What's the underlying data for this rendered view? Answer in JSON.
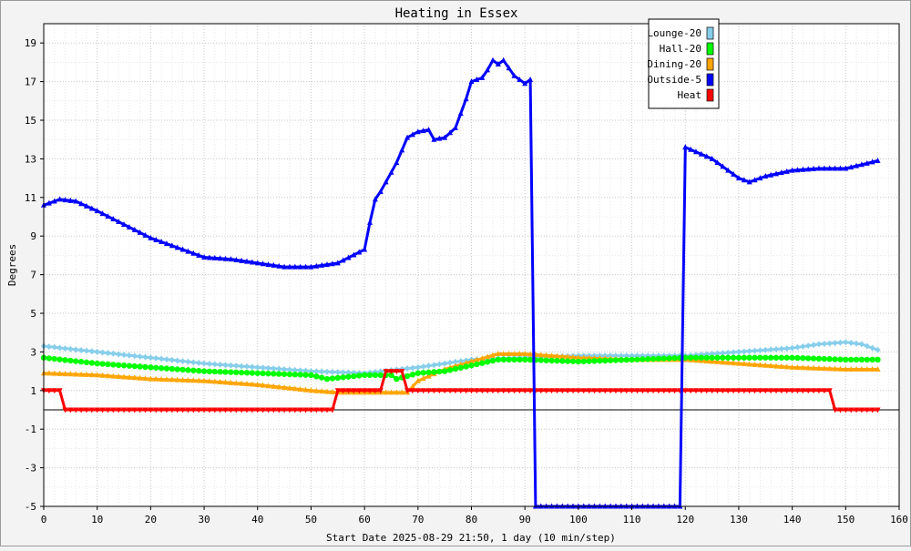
{
  "chart_data": {
    "type": "line",
    "title": "Heating in Essex",
    "xlabel": "Start Date 2025-08-29 21:50, 1 day (10 min/step)",
    "ylabel": "Degrees",
    "xlim": [
      0,
      160
    ],
    "ylim": [
      -5,
      20
    ],
    "x_ticks": [
      0,
      10,
      20,
      30,
      40,
      50,
      60,
      70,
      80,
      90,
      100,
      110,
      120,
      130,
      140,
      150,
      160
    ],
    "y_ticks": [
      -5,
      -3,
      -1,
      1,
      3,
      5,
      7,
      9,
      11,
      13,
      15,
      17,
      19
    ],
    "grid": true,
    "legend_position": "top-right",
    "series": [
      {
        "name": "Lounge-20",
        "color": "#87ceeb",
        "marker": "diamond",
        "points": [
          [
            0,
            3.3
          ],
          [
            10,
            3.0
          ],
          [
            20,
            2.7
          ],
          [
            30,
            2.4
          ],
          [
            40,
            2.2
          ],
          [
            50,
            2.0
          ],
          [
            60,
            1.9
          ],
          [
            70,
            2.2
          ],
          [
            80,
            2.6
          ],
          [
            90,
            2.7
          ],
          [
            100,
            2.8
          ],
          [
            110,
            2.8
          ],
          [
            120,
            2.8
          ],
          [
            130,
            3.0
          ],
          [
            140,
            3.2
          ],
          [
            145,
            3.4
          ],
          [
            150,
            3.5
          ],
          [
            153,
            3.4
          ],
          [
            156,
            3.1
          ]
        ]
      },
      {
        "name": "Hall-20",
        "color": "#00ff00",
        "marker": "circle",
        "points": [
          [
            0,
            2.7
          ],
          [
            10,
            2.4
          ],
          [
            20,
            2.2
          ],
          [
            30,
            2.0
          ],
          [
            40,
            1.9
          ],
          [
            50,
            1.8
          ],
          [
            53,
            1.6
          ],
          [
            60,
            1.8
          ],
          [
            65,
            1.8
          ],
          [
            66,
            1.6
          ],
          [
            70,
            1.9
          ],
          [
            75,
            2.0
          ],
          [
            80,
            2.3
          ],
          [
            85,
            2.6
          ],
          [
            90,
            2.6
          ],
          [
            100,
            2.5
          ],
          [
            110,
            2.6
          ],
          [
            120,
            2.7
          ],
          [
            130,
            2.7
          ],
          [
            140,
            2.7
          ],
          [
            150,
            2.6
          ],
          [
            156,
            2.6
          ]
        ]
      },
      {
        "name": "Dining-20",
        "color": "#ffa500",
        "marker": "triangle-up",
        "points": [
          [
            0,
            1.9
          ],
          [
            10,
            1.8
          ],
          [
            20,
            1.6
          ],
          [
            30,
            1.5
          ],
          [
            40,
            1.3
          ],
          [
            50,
            1.0
          ],
          [
            55,
            0.9
          ],
          [
            60,
            0.9
          ],
          [
            65,
            0.9
          ],
          [
            68,
            0.9
          ],
          [
            70,
            1.5
          ],
          [
            75,
            2.1
          ],
          [
            80,
            2.5
          ],
          [
            85,
            2.9
          ],
          [
            90,
            2.9
          ],
          [
            95,
            2.8
          ],
          [
            100,
            2.7
          ],
          [
            110,
            2.6
          ],
          [
            120,
            2.6
          ],
          [
            130,
            2.4
          ],
          [
            140,
            2.2
          ],
          [
            150,
            2.1
          ],
          [
            156,
            2.1
          ]
        ]
      },
      {
        "name": "Outside-5",
        "color": "#0000ff",
        "marker": "triangle-up",
        "points": [
          [
            0,
            10.6
          ],
          [
            3,
            10.9
          ],
          [
            6,
            10.8
          ],
          [
            10,
            10.3
          ],
          [
            15,
            9.6
          ],
          [
            20,
            8.9
          ],
          [
            25,
            8.4
          ],
          [
            30,
            7.9
          ],
          [
            35,
            7.8
          ],
          [
            40,
            7.6
          ],
          [
            45,
            7.4
          ],
          [
            50,
            7.4
          ],
          [
            55,
            7.6
          ],
          [
            60,
            8.3
          ],
          [
            61,
            9.7
          ],
          [
            62,
            10.9
          ],
          [
            63,
            11.3
          ],
          [
            64,
            11.8
          ],
          [
            65,
            12.3
          ],
          [
            66,
            12.8
          ],
          [
            68,
            14.1
          ],
          [
            70,
            14.4
          ],
          [
            72,
            14.5
          ],
          [
            73,
            14.0
          ],
          [
            75,
            14.1
          ],
          [
            77,
            14.6
          ],
          [
            79,
            16.1
          ],
          [
            80,
            17.0
          ],
          [
            82,
            17.2
          ],
          [
            83,
            17.6
          ],
          [
            84,
            18.1
          ],
          [
            85,
            17.9
          ],
          [
            86,
            18.1
          ],
          [
            88,
            17.3
          ],
          [
            90,
            16.9
          ],
          [
            91,
            17.1
          ],
          [
            92,
            -5.0
          ],
          [
            100,
            -5.0
          ],
          [
            110,
            -5.0
          ],
          [
            118,
            -5.0
          ],
          [
            119,
            -5.0
          ],
          [
            120,
            13.6
          ],
          [
            125,
            13.0
          ],
          [
            130,
            12.0
          ],
          [
            132,
            11.8
          ],
          [
            135,
            12.1
          ],
          [
            140,
            12.4
          ],
          [
            145,
            12.5
          ],
          [
            150,
            12.5
          ],
          [
            153,
            12.7
          ],
          [
            156,
            12.9
          ]
        ]
      },
      {
        "name": "Heat",
        "color": "#ff0000",
        "marker": "triangle-down",
        "points": [
          [
            0,
            1.0
          ],
          [
            3,
            1.0
          ],
          [
            4,
            0.0
          ],
          [
            20,
            0.0
          ],
          [
            40,
            0.0
          ],
          [
            54,
            0.0
          ],
          [
            55,
            1.0
          ],
          [
            63,
            1.0
          ],
          [
            64,
            2.0
          ],
          [
            67,
            2.0
          ],
          [
            68,
            1.0
          ],
          [
            80,
            1.0
          ],
          [
            100,
            1.0
          ],
          [
            120,
            1.0
          ],
          [
            140,
            1.0
          ],
          [
            147,
            1.0
          ],
          [
            148,
            0.0
          ],
          [
            156,
            0.0
          ]
        ]
      }
    ]
  }
}
